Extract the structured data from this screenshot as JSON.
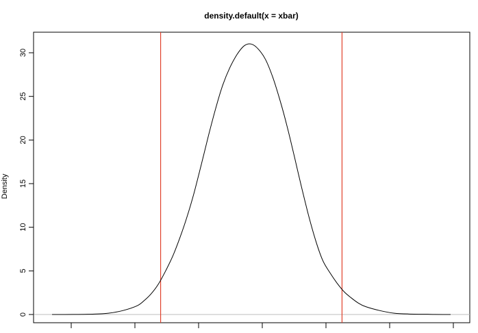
{
  "chart_data": {
    "type": "line",
    "title": "density.default(x = xbar)",
    "xlabel": "",
    "ylabel": "Density",
    "ylim": [
      0,
      31
    ],
    "xlim": [
      -0.028,
      0.028
    ],
    "x_tick_labels": [],
    "y_ticks": [
      0,
      5,
      10,
      15,
      20,
      25,
      30
    ],
    "y_tick_labels": [
      "0",
      "5",
      "10",
      "15",
      "20",
      "25",
      "30"
    ],
    "grid": false,
    "baseline": 0,
    "vlines": [
      -0.0127,
      0.0127
    ],
    "colors": {
      "curve": "#000000",
      "vlines": "#e0402a",
      "baseline": "#bebebe"
    },
    "series": [
      {
        "x": [
          -0.0279,
          -0.025,
          -0.022,
          -0.02,
          -0.018,
          -0.016,
          -0.015,
          -0.014,
          -0.013,
          -0.012,
          -0.011,
          -0.01,
          -0.009,
          -0.008,
          -0.007,
          -0.006,
          -0.005,
          -0.004,
          -0.003,
          -0.002,
          -0.001,
          0,
          0.001,
          0.002,
          0.003,
          0.004,
          0.005,
          0.006,
          0.007,
          0.008,
          0.009,
          0.01,
          0.011,
          0.012,
          0.013,
          0.014,
          0.015,
          0.016,
          0.018,
          0.02,
          0.022,
          0.025,
          0.0279
        ],
        "y": [
          0,
          0.01,
          0.05,
          0.15,
          0.45,
          1.0,
          1.6,
          2.4,
          3.5,
          5.0,
          6.7,
          8.8,
          11.2,
          14.0,
          17.2,
          20.5,
          23.6,
          26.3,
          28.3,
          29.8,
          30.8,
          31.0,
          30.4,
          29.2,
          27.2,
          24.6,
          21.6,
          18.2,
          14.7,
          11.4,
          8.5,
          6.2,
          4.8,
          3.6,
          2.6,
          1.9,
          1.3,
          0.9,
          0.45,
          0.15,
          0.06,
          0.02,
          0
        ]
      }
    ]
  }
}
